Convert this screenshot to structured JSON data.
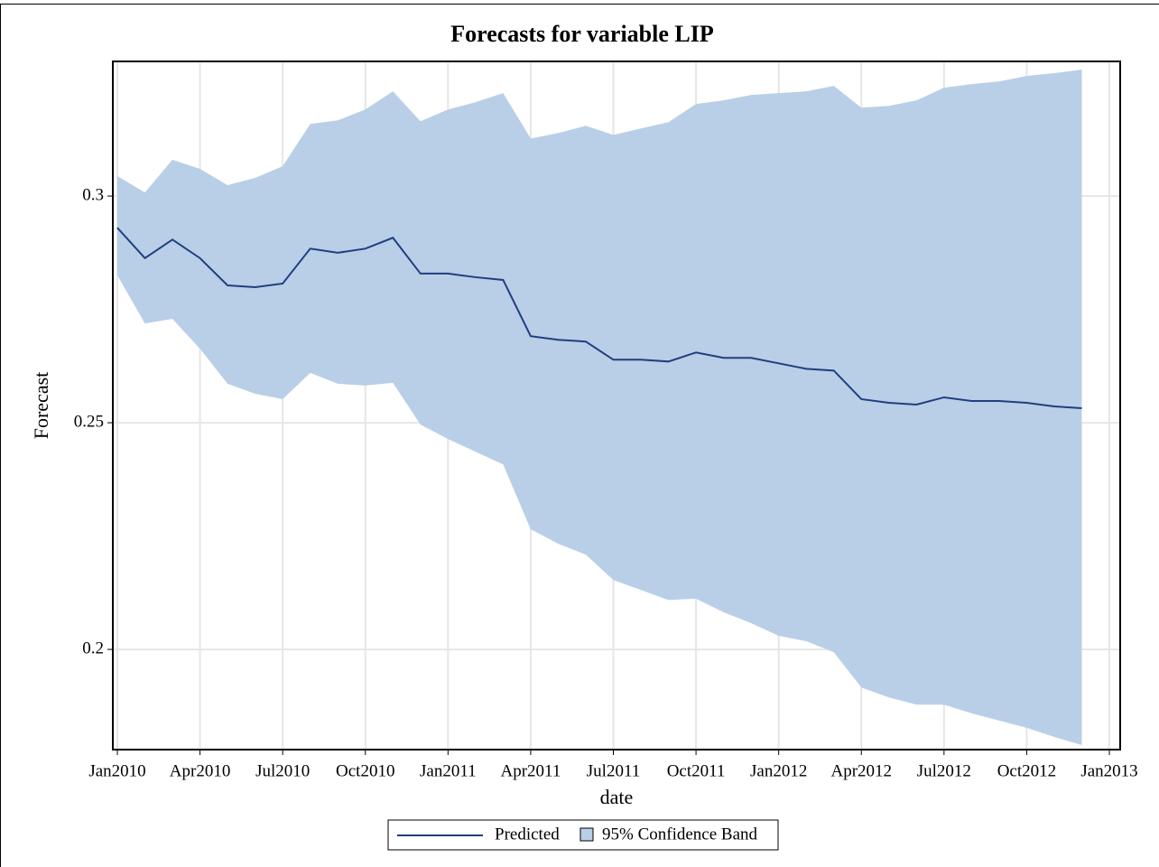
{
  "chart_data": {
    "type": "line",
    "title": "Forecasts for variable LIP",
    "x_label": "date",
    "y_label": "Forecast",
    "x": [
      "2010-01",
      "2010-02",
      "2010-03",
      "2010-04",
      "2010-05",
      "2010-06",
      "2010-07",
      "2010-08",
      "2010-09",
      "2010-10",
      "2010-11",
      "2010-12",
      "2011-01",
      "2011-02",
      "2011-03",
      "2011-04",
      "2011-05",
      "2011-06",
      "2011-07",
      "2011-08",
      "2011-09",
      "2011-10",
      "2011-11",
      "2011-12",
      "2012-01",
      "2012-02",
      "2012-03",
      "2012-04",
      "2012-05",
      "2012-06",
      "2012-07",
      "2012-08",
      "2012-09",
      "2012-10",
      "2012-11",
      "2012-12"
    ],
    "series": [
      {
        "name": "Predicted",
        "color": "#1f3f7f",
        "values": [
          0.293,
          0.2863,
          0.2904,
          0.2863,
          0.2803,
          0.2799,
          0.2807,
          0.2884,
          0.2875,
          0.2884,
          0.2908,
          0.2829,
          0.2829,
          0.2821,
          0.2815,
          0.2691,
          0.2683,
          0.2679,
          0.2639,
          0.2639,
          0.2635,
          0.2655,
          0.2643,
          0.2643,
          0.2631,
          0.2619,
          0.2615,
          0.2552,
          0.2544,
          0.254,
          0.2556,
          0.2548,
          0.2548,
          0.2544,
          0.2536,
          0.2532
        ]
      }
    ],
    "band": {
      "name": "95% Confidence Band",
      "color": "#b9cfe7",
      "upper": [
        0.3044,
        0.3008,
        0.308,
        0.306,
        0.3024,
        0.304,
        0.3066,
        0.3159,
        0.3167,
        0.3191,
        0.3231,
        0.3165,
        0.3191,
        0.3207,
        0.3227,
        0.3127,
        0.3139,
        0.3155,
        0.3135,
        0.3149,
        0.3163,
        0.3203,
        0.3211,
        0.3223,
        0.3227,
        0.3231,
        0.3243,
        0.3195,
        0.3199,
        0.3211,
        0.3239,
        0.3247,
        0.3253,
        0.3265,
        0.3271,
        0.3279
      ],
      "lower": [
        0.2825,
        0.2719,
        0.2729,
        0.2663,
        0.2586,
        0.2564,
        0.2552,
        0.261,
        0.2586,
        0.2582,
        0.2588,
        0.2496,
        0.2464,
        0.2436,
        0.2408,
        0.2265,
        0.2233,
        0.2209,
        0.2153,
        0.2131,
        0.2109,
        0.2112,
        0.2082,
        0.2058,
        0.203,
        0.2018,
        0.1994,
        0.1916,
        0.1894,
        0.1878,
        0.1878,
        0.1859,
        0.1843,
        0.1827,
        0.1807,
        0.1789
      ]
    },
    "xlim": [
      "2010-01",
      "2013-01"
    ],
    "xticks": [
      {
        "value": "2010-01",
        "label": "Jan2010"
      },
      {
        "value": "2010-04",
        "label": "Apr2010"
      },
      {
        "value": "2010-07",
        "label": "Jul2010"
      },
      {
        "value": "2010-10",
        "label": "Oct2010"
      },
      {
        "value": "2011-01",
        "label": "Jan2011"
      },
      {
        "value": "2011-04",
        "label": "Apr2011"
      },
      {
        "value": "2011-07",
        "label": "Jul2011"
      },
      {
        "value": "2011-10",
        "label": "Oct2011"
      },
      {
        "value": "2012-01",
        "label": "Jan2012"
      },
      {
        "value": "2012-04",
        "label": "Apr2012"
      },
      {
        "value": "2012-07",
        "label": "Jul2012"
      },
      {
        "value": "2012-10",
        "label": "Oct2012"
      },
      {
        "value": "2013-01",
        "label": "Jan2013"
      }
    ],
    "ylim": [
      0.1779,
      0.3297
    ],
    "yticks": [
      0.2,
      0.25,
      0.3
    ],
    "grid": true,
    "legend": "bottom"
  }
}
